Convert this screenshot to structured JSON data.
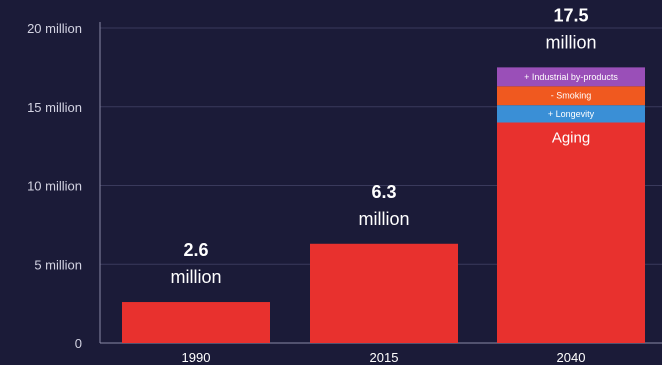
{
  "chart_data": {
    "type": "bar",
    "categories": [
      "1990",
      "2015",
      "2040"
    ],
    "values": [
      2.6,
      6.3,
      17.5
    ],
    "value_labels": [
      {
        "number": "2.6",
        "unit": "million"
      },
      {
        "number": "6.3",
        "unit": "million"
      },
      {
        "number": "17.5",
        "unit": "million"
      }
    ],
    "ylim": [
      0,
      20
    ],
    "yticks": [
      0,
      5,
      10,
      15,
      20
    ],
    "ytick_labels": [
      "0",
      "5 million",
      "10 million",
      "15 million",
      "20 million"
    ],
    "grid": true,
    "stacked_breakdown": {
      "category": "2040",
      "segments": [
        {
          "label": "Aging",
          "value": 14.0,
          "color": "#e8312e"
        },
        {
          "label": "+ Longevity",
          "value": 1.1,
          "color": "#3a8fd6"
        },
        {
          "label": "- Smoking",
          "value": 1.2,
          "color": "#f0591f"
        },
        {
          "label": "+ Industrial by-products",
          "value": 1.2,
          "color": "#9a4fb8"
        }
      ]
    },
    "colors": {
      "background": "#1b1b38",
      "bar": "#e8312e",
      "grid": "#3a3a5c",
      "axis": "#8a8aa6"
    }
  }
}
